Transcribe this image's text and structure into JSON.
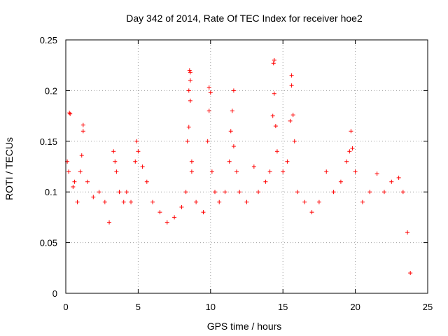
{
  "chart_data": {
    "type": "scatter",
    "title": "Day 342 of 2014, Rate Of TEC Index for receiver hoe2",
    "xlabel": "GPS time / hours",
    "ylabel": "ROTI / TECUs",
    "xlim": [
      0,
      25
    ],
    "ylim": [
      0,
      0.25
    ],
    "x_ticks": [
      0,
      5,
      10,
      15,
      20,
      25
    ],
    "y_ticks": [
      0,
      0.05,
      0.1,
      0.15,
      0.2,
      0.25
    ],
    "y_tick_labels": [
      "0",
      "0.05",
      "0.1",
      "0.15",
      "0.2",
      "0.25"
    ],
    "grid": true,
    "marker": "+",
    "series_color": "#ff0000",
    "x_range_observed": [
      0,
      23.8
    ],
    "series": [
      {
        "name": "ROTI",
        "points": [
          [
            0.1,
            0.13
          ],
          [
            0.2,
            0.12
          ],
          [
            0.25,
            0.178
          ],
          [
            0.3,
            0.177
          ],
          [
            0.5,
            0.105
          ],
          [
            0.6,
            0.11
          ],
          [
            0.8,
            0.09
          ],
          [
            1.0,
            0.12
          ],
          [
            1.2,
            0.166
          ],
          [
            1.2,
            0.16
          ],
          [
            1.1,
            0.136
          ],
          [
            1.5,
            0.11
          ],
          [
            1.9,
            0.095
          ],
          [
            2.3,
            0.1
          ],
          [
            2.7,
            0.09
          ],
          [
            3.0,
            0.07
          ],
          [
            3.3,
            0.14
          ],
          [
            3.4,
            0.13
          ],
          [
            3.5,
            0.12
          ],
          [
            3.7,
            0.1
          ],
          [
            4.0,
            0.09
          ],
          [
            4.2,
            0.1
          ],
          [
            4.5,
            0.09
          ],
          [
            4.8,
            0.13
          ],
          [
            4.9,
            0.15
          ],
          [
            5.0,
            0.14
          ],
          [
            5.3,
            0.125
          ],
          [
            5.6,
            0.11
          ],
          [
            6.0,
            0.09
          ],
          [
            6.5,
            0.08
          ],
          [
            7.0,
            0.07
          ],
          [
            7.5,
            0.075
          ],
          [
            8.0,
            0.085
          ],
          [
            8.3,
            0.1
          ],
          [
            8.4,
            0.15
          ],
          [
            8.5,
            0.164
          ],
          [
            8.5,
            0.2
          ],
          [
            8.55,
            0.22
          ],
          [
            8.6,
            0.218
          ],
          [
            8.6,
            0.21
          ],
          [
            8.6,
            0.19
          ],
          [
            8.7,
            0.13
          ],
          [
            8.7,
            0.12
          ],
          [
            9.0,
            0.09
          ],
          [
            9.5,
            0.08
          ],
          [
            9.8,
            0.15
          ],
          [
            9.9,
            0.18
          ],
          [
            9.9,
            0.203
          ],
          [
            10.0,
            0.198
          ],
          [
            10.1,
            0.12
          ],
          [
            10.3,
            0.1
          ],
          [
            10.6,
            0.09
          ],
          [
            11.0,
            0.1
          ],
          [
            11.3,
            0.13
          ],
          [
            11.4,
            0.16
          ],
          [
            11.5,
            0.18
          ],
          [
            11.6,
            0.2
          ],
          [
            11.6,
            0.145
          ],
          [
            11.8,
            0.12
          ],
          [
            12.0,
            0.1
          ],
          [
            12.5,
            0.09
          ],
          [
            13.0,
            0.125
          ],
          [
            13.3,
            0.1
          ],
          [
            13.8,
            0.11
          ],
          [
            14.1,
            0.12
          ],
          [
            14.3,
            0.175
          ],
          [
            14.35,
            0.227
          ],
          [
            14.4,
            0.23
          ],
          [
            14.4,
            0.197
          ],
          [
            14.5,
            0.165
          ],
          [
            14.6,
            0.14
          ],
          [
            15.0,
            0.12
          ],
          [
            15.3,
            0.13
          ],
          [
            15.5,
            0.17
          ],
          [
            15.6,
            0.215
          ],
          [
            15.6,
            0.205
          ],
          [
            15.7,
            0.176
          ],
          [
            15.8,
            0.15
          ],
          [
            16.0,
            0.1
          ],
          [
            16.5,
            0.09
          ],
          [
            17.0,
            0.08
          ],
          [
            17.5,
            0.09
          ],
          [
            18.0,
            0.12
          ],
          [
            18.5,
            0.1
          ],
          [
            19.0,
            0.11
          ],
          [
            19.4,
            0.13
          ],
          [
            19.6,
            0.14
          ],
          [
            19.7,
            0.16
          ],
          [
            19.8,
            0.143
          ],
          [
            20.0,
            0.12
          ],
          [
            20.5,
            0.09
          ],
          [
            21.0,
            0.1
          ],
          [
            21.5,
            0.118
          ],
          [
            22.0,
            0.1
          ],
          [
            22.5,
            0.11
          ],
          [
            23.0,
            0.114
          ],
          [
            23.3,
            0.1
          ],
          [
            23.6,
            0.06
          ],
          [
            23.8,
            0.02
          ]
        ]
      }
    ]
  }
}
